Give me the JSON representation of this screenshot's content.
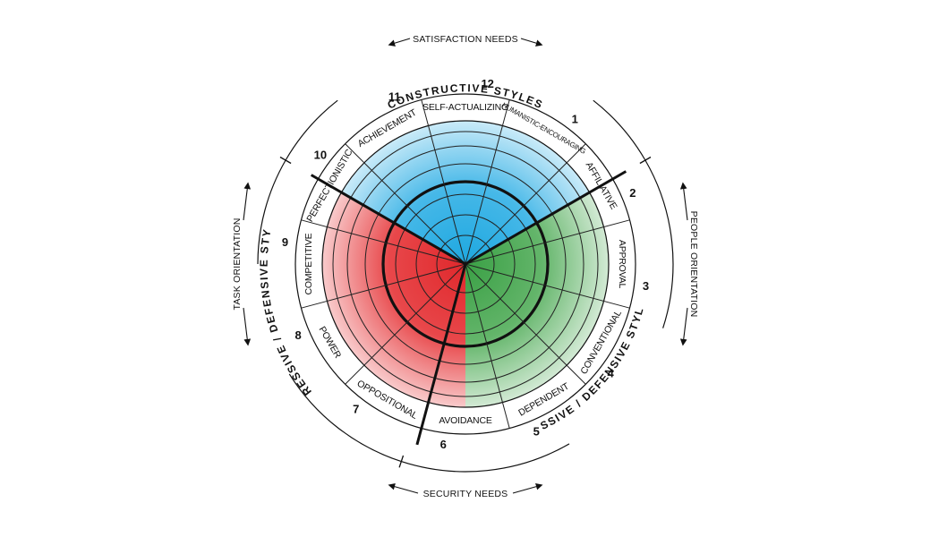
{
  "diagram": {
    "segments": [
      {
        "number": "12",
        "label": "SELF-ACTUALIZING",
        "group": "constructive"
      },
      {
        "number": "1",
        "label": "HUMANISTIC-ENCOURAGING",
        "group": "constructive"
      },
      {
        "number": "2",
        "label": "AFFILIATIVE",
        "group": "constructive"
      },
      {
        "number": "3",
        "label": "APPROVAL",
        "group": "passive"
      },
      {
        "number": "4",
        "label": "CONVENTIONAL",
        "group": "passive"
      },
      {
        "number": "5",
        "label": "DEPENDENT",
        "group": "passive"
      },
      {
        "number": "6",
        "label": "AVOIDANCE",
        "group": "passive"
      },
      {
        "number": "7",
        "label": "OPPOSITIONAL",
        "group": "aggressive"
      },
      {
        "number": "8",
        "label": "POWER",
        "group": "aggressive"
      },
      {
        "number": "9",
        "label": "COMPETITIVE",
        "group": "aggressive"
      },
      {
        "number": "10",
        "label": "PERFECTIONISTIC",
        "group": "aggressive"
      },
      {
        "number": "11",
        "label": "ACHIEVEMENT",
        "group": "constructive"
      }
    ],
    "groups": {
      "constructive": {
        "label": "CONSTRUCTIVE STYLES",
        "color": "#1ea8e0"
      },
      "passive": {
        "label": "PASSIVE / DEFENSIVE STYLES",
        "color": "#3aa045"
      },
      "aggressive": {
        "label": "AGGRESSIVE / DEFENSIVE STYLES",
        "color": "#e0282c"
      }
    },
    "dimensions": {
      "top": "SATISFACTION NEEDS",
      "bottom": "SECURITY NEEDS",
      "left": "TASK ORIENTATION",
      "right": "PEOPLE ORIENTATION"
    }
  }
}
